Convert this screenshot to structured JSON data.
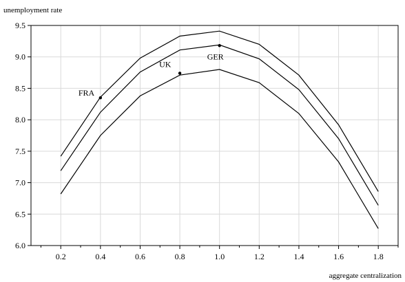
{
  "chart_data": {
    "type": "line",
    "title": "",
    "xlabel": "aggregate centralization",
    "ylabel": "unemployment rate",
    "xlim": [
      0.05,
      1.9
    ],
    "ylim": [
      6.0,
      9.5
    ],
    "x_ticks": [
      0.2,
      0.4,
      0.6,
      0.8,
      1.0,
      1.2,
      1.4,
      1.6,
      1.8
    ],
    "x_tick_labels": [
      "0.2",
      "0.4",
      "0.6",
      "0.8",
      "1.0",
      "1.2",
      "1.4",
      "1.6",
      "1.8"
    ],
    "y_ticks": [
      6.0,
      6.5,
      7.0,
      7.5,
      8.0,
      8.5,
      9.0,
      9.5
    ],
    "y_tick_labels": [
      "6.0",
      "6.5",
      "7.0",
      "7.5",
      "8.0",
      "8.5",
      "9.0",
      "9.5"
    ],
    "grid": true,
    "legend": "none",
    "x": [
      0.2,
      0.4,
      0.6,
      0.8,
      1.0,
      1.2,
      1.4,
      1.6,
      1.8
    ],
    "series": [
      {
        "values": [
          7.42,
          8.36,
          8.98,
          9.33,
          9.41,
          9.2,
          8.71,
          7.92,
          6.86
        ]
      },
      {
        "values": [
          7.19,
          8.12,
          8.76,
          9.11,
          9.19,
          8.97,
          8.48,
          7.7,
          6.64
        ]
      },
      {
        "values": [
          6.82,
          7.75,
          8.38,
          8.71,
          8.8,
          8.59,
          8.1,
          7.33,
          6.27
        ]
      }
    ],
    "annotations": [
      {
        "label": "FRA",
        "x": 0.4,
        "y": 8.35
      },
      {
        "label": "UK",
        "x": 0.8,
        "y": 8.74
      },
      {
        "label": "GER",
        "x": 1.0,
        "y": 9.18
      }
    ],
    "colors": {
      "line": "#000000",
      "grid": "#d9d9d9",
      "axis": "#000000"
    }
  }
}
